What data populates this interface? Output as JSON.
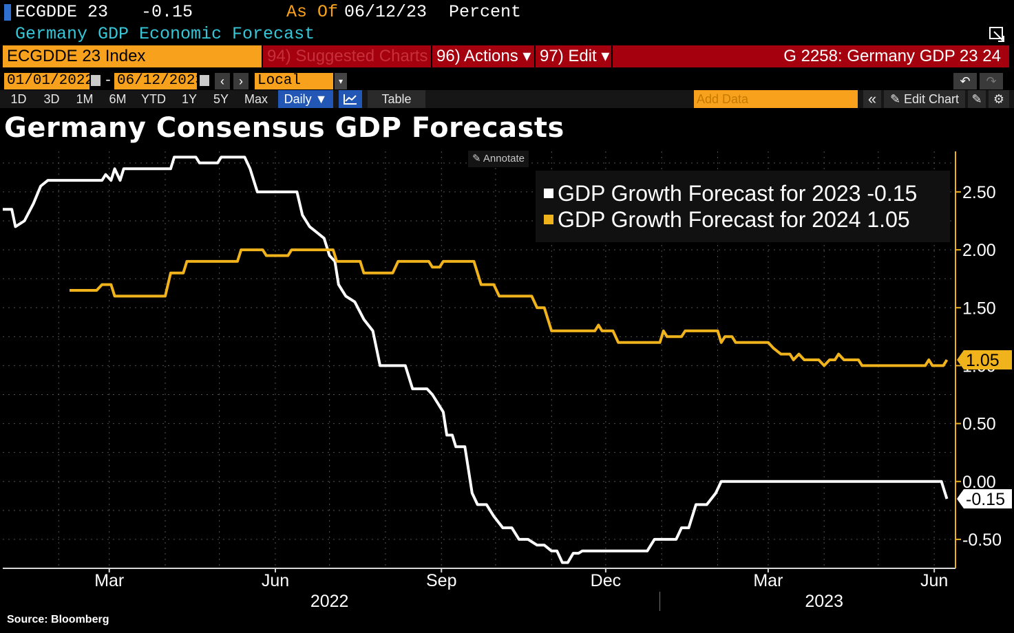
{
  "header": {
    "ticker": "ECGDDE 23",
    "value": "-0.15",
    "as_of_label": "As Of",
    "as_of_date": "06/12/23",
    "unit": "Percent",
    "description": "Germany GDP Economic Forecast"
  },
  "toolbar": {
    "security": "ECGDDE 23 Index",
    "suggested": "94) Suggested Charts",
    "actions": "96) Actions ▾",
    "edit": "97) Edit ▾",
    "chart_id": "G 2258: Germany GDP 23 24"
  },
  "dates": {
    "start": "01/01/2022",
    "separator": "-",
    "end": "06/12/2023",
    "currency": "Local CCY"
  },
  "tabs": {
    "periods": [
      "1D",
      "3D",
      "1M",
      "6M",
      "YTD",
      "1Y",
      "5Y",
      "Max"
    ],
    "frequency": "Daily ▼",
    "table": "Table",
    "add_data_placeholder": "Add Data",
    "collapse": "«",
    "edit_chart": "✎ Edit Chart"
  },
  "annotate_label": "Annotate",
  "source": "Source: Bloomberg",
  "colors": {
    "orange": "#f7a11c",
    "red": "#a5000d",
    "series2023": "#ffffff",
    "series2024": "#f0b31c",
    "grid": "#555555"
  },
  "chart_data": {
    "type": "line",
    "title": "Germany Consensus GDP Forecasts",
    "xlabel": "",
    "ylabel": "Percent",
    "ylim": [
      -0.75,
      2.85
    ],
    "yticks": [
      "2.50",
      "2.00",
      "1.50",
      "1.00",
      "0.50",
      "0.00",
      "-0.50"
    ],
    "ytick_values": [
      2.5,
      2.0,
      1.5,
      1.0,
      0.5,
      0.0,
      -0.5
    ],
    "xlim": [
      "2022-01-01",
      "2023-06-12"
    ],
    "xticks": [
      {
        "label": "Mar",
        "date": "2022-03-01"
      },
      {
        "label": "Jun",
        "date": "2022-06-01"
      },
      {
        "label": "Sep",
        "date": "2022-09-01"
      },
      {
        "label": "Dec",
        "date": "2022-12-01"
      },
      {
        "label": "Mar",
        "date": "2023-03-01"
      },
      {
        "label": "Jun",
        "date": "2023-06-01"
      }
    ],
    "year_labels": [
      {
        "label": "2022",
        "date": "2022-07-01"
      },
      {
        "label": "2023",
        "date": "2023-04-01"
      }
    ],
    "year_divider_date": "2022-12-31",
    "legend_position": "top-right",
    "series": [
      {
        "name": "GDP Growth Forecast for 2023",
        "last_value": "-0.15",
        "color": "#ffffff",
        "points": [
          [
            "2022-01-01",
            2.35
          ],
          [
            "2022-01-06",
            2.35
          ],
          [
            "2022-01-08",
            2.2
          ],
          [
            "2022-01-13",
            2.25
          ],
          [
            "2022-01-18",
            2.4
          ],
          [
            "2022-01-22",
            2.55
          ],
          [
            "2022-01-26",
            2.6
          ],
          [
            "2022-02-25",
            2.6
          ],
          [
            "2022-02-27",
            2.65
          ],
          [
            "2022-03-02",
            2.6
          ],
          [
            "2022-03-04",
            2.7
          ],
          [
            "2022-03-07",
            2.6
          ],
          [
            "2022-03-09",
            2.7
          ],
          [
            "2022-04-04",
            2.7
          ],
          [
            "2022-04-06",
            2.8
          ],
          [
            "2022-04-18",
            2.8
          ],
          [
            "2022-04-20",
            2.75
          ],
          [
            "2022-04-30",
            2.75
          ],
          [
            "2022-05-02",
            2.8
          ],
          [
            "2022-05-15",
            2.8
          ],
          [
            "2022-05-18",
            2.7
          ],
          [
            "2022-05-22",
            2.5
          ],
          [
            "2022-06-13",
            2.5
          ],
          [
            "2022-06-16",
            2.3
          ],
          [
            "2022-06-20",
            2.2
          ],
          [
            "2022-06-24",
            2.15
          ],
          [
            "2022-06-28",
            2.1
          ],
          [
            "2022-07-01",
            1.95
          ],
          [
            "2022-07-04",
            1.9
          ],
          [
            "2022-07-06",
            1.7
          ],
          [
            "2022-07-10",
            1.6
          ],
          [
            "2022-07-15",
            1.55
          ],
          [
            "2022-07-20",
            1.4
          ],
          [
            "2022-07-25",
            1.3
          ],
          [
            "2022-07-29",
            1.0
          ],
          [
            "2022-08-12",
            1.0
          ],
          [
            "2022-08-16",
            0.8
          ],
          [
            "2022-08-24",
            0.8
          ],
          [
            "2022-08-27",
            0.75
          ],
          [
            "2022-09-02",
            0.6
          ],
          [
            "2022-09-04",
            0.4
          ],
          [
            "2022-09-07",
            0.4
          ],
          [
            "2022-09-09",
            0.3
          ],
          [
            "2022-09-14",
            0.3
          ],
          [
            "2022-09-18",
            -0.1
          ],
          [
            "2022-09-21",
            -0.2
          ],
          [
            "2022-09-26",
            -0.2
          ],
          [
            "2022-09-30",
            -0.3
          ],
          [
            "2022-10-05",
            -0.4
          ],
          [
            "2022-10-10",
            -0.4
          ],
          [
            "2022-10-14",
            -0.5
          ],
          [
            "2022-10-19",
            -0.5
          ],
          [
            "2022-10-24",
            -0.55
          ],
          [
            "2022-10-28",
            -0.55
          ],
          [
            "2022-11-01",
            -0.6
          ],
          [
            "2022-11-04",
            -0.6
          ],
          [
            "2022-11-07",
            -0.7
          ],
          [
            "2022-11-10",
            -0.7
          ],
          [
            "2022-11-13",
            -0.62
          ],
          [
            "2022-11-16",
            -0.62
          ],
          [
            "2022-11-18",
            -0.6
          ],
          [
            "2022-12-24",
            -0.6
          ],
          [
            "2022-12-28",
            -0.5
          ],
          [
            "2023-01-09",
            -0.5
          ],
          [
            "2023-01-12",
            -0.4
          ],
          [
            "2023-01-16",
            -0.4
          ],
          [
            "2023-01-20",
            -0.2
          ],
          [
            "2023-01-26",
            -0.2
          ],
          [
            "2023-01-31",
            -0.1
          ],
          [
            "2023-02-03",
            0.0
          ],
          [
            "2023-06-05",
            0.0
          ],
          [
            "2023-06-08",
            -0.15
          ]
        ]
      },
      {
        "name": "GDP Growth Forecast for 2024",
        "last_value": "1.05",
        "color": "#f0b31c",
        "points": [
          [
            "2022-02-07",
            1.65
          ],
          [
            "2022-02-22",
            1.65
          ],
          [
            "2022-02-25",
            1.7
          ],
          [
            "2022-03-02",
            1.7
          ],
          [
            "2022-03-04",
            1.6
          ],
          [
            "2022-04-01",
            1.6
          ],
          [
            "2022-04-04",
            1.8
          ],
          [
            "2022-04-11",
            1.8
          ],
          [
            "2022-04-13",
            1.9
          ],
          [
            "2022-05-11",
            1.9
          ],
          [
            "2022-05-13",
            2.0
          ],
          [
            "2022-05-25",
            2.0
          ],
          [
            "2022-05-27",
            1.95
          ],
          [
            "2022-06-08",
            1.95
          ],
          [
            "2022-06-10",
            2.0
          ],
          [
            "2022-07-03",
            2.0
          ],
          [
            "2022-07-05",
            1.9
          ],
          [
            "2022-07-18",
            1.9
          ],
          [
            "2022-07-20",
            1.8
          ],
          [
            "2022-08-05",
            1.8
          ],
          [
            "2022-08-08",
            1.9
          ],
          [
            "2022-08-25",
            1.9
          ],
          [
            "2022-08-27",
            1.85
          ],
          [
            "2022-08-31",
            1.85
          ],
          [
            "2022-09-02",
            1.9
          ],
          [
            "2022-09-19",
            1.9
          ],
          [
            "2022-09-23",
            1.7
          ],
          [
            "2022-09-30",
            1.7
          ],
          [
            "2022-10-03",
            1.6
          ],
          [
            "2022-10-21",
            1.6
          ],
          [
            "2022-10-24",
            1.5
          ],
          [
            "2022-10-28",
            1.5
          ],
          [
            "2022-11-01",
            1.3
          ],
          [
            "2022-11-25",
            1.3
          ],
          [
            "2022-11-27",
            1.35
          ],
          [
            "2022-11-29",
            1.3
          ],
          [
            "2022-12-05",
            1.3
          ],
          [
            "2022-12-08",
            1.2
          ],
          [
            "2022-12-31",
            1.2
          ],
          [
            "2023-01-02",
            1.3
          ],
          [
            "2023-01-04",
            1.25
          ],
          [
            "2023-01-12",
            1.25
          ],
          [
            "2023-01-14",
            1.3
          ],
          [
            "2023-02-01",
            1.3
          ],
          [
            "2023-02-03",
            1.2
          ],
          [
            "2023-02-05",
            1.25
          ],
          [
            "2023-02-09",
            1.25
          ],
          [
            "2023-02-11",
            1.2
          ],
          [
            "2023-03-01",
            1.2
          ],
          [
            "2023-03-04",
            1.15
          ],
          [
            "2023-03-08",
            1.1
          ],
          [
            "2023-03-13",
            1.1
          ],
          [
            "2023-03-15",
            1.05
          ],
          [
            "2023-03-18",
            1.1
          ],
          [
            "2023-03-21",
            1.05
          ],
          [
            "2023-03-29",
            1.05
          ],
          [
            "2023-04-01",
            1.0
          ],
          [
            "2023-04-04",
            1.05
          ],
          [
            "2023-04-07",
            1.05
          ],
          [
            "2023-04-09",
            1.1
          ],
          [
            "2023-04-12",
            1.05
          ],
          [
            "2023-04-20",
            1.05
          ],
          [
            "2023-04-22",
            1.0
          ],
          [
            "2023-05-27",
            1.0
          ],
          [
            "2023-05-29",
            1.05
          ],
          [
            "2023-05-31",
            1.0
          ],
          [
            "2023-06-06",
            1.0
          ],
          [
            "2023-06-08",
            1.05
          ]
        ]
      }
    ]
  }
}
